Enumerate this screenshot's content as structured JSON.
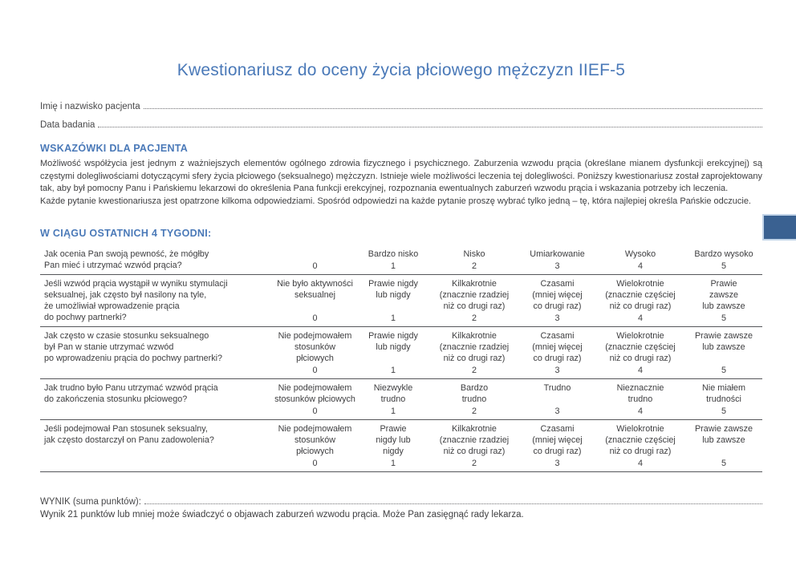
{
  "title": "Kwestionariusz do oceny życia płciowego mężczyzn IIEF-5",
  "patient_fields": [
    {
      "label": "Imię i nazwisko pacjenta"
    },
    {
      "label": "Data badania"
    }
  ],
  "instructions": {
    "heading": "WSKAZÓWKI DLA PACJENTA",
    "paragraphs": [
      "Możliwość współżycia jest jednym z ważniejszych elementów ogólnego zdrowia fizycznego i psychicznego. Zaburzenia wzwodu prącia (określane mianem dysfunkcji erekcyjnej) są częstymi dolegliwościami dotyczącymi sfery życia płciowego (seksualnego) mężczyzn. Istnieje wiele możliwości leczenia tej dolegliwości. Poniższy kwestionariusz został zaprojektowany tak, aby był pomocny Panu i Pańskiemu lekarzowi do określenia Pana funkcji erekcyjnej, rozpoznania ewentualnych zaburzeń wzwodu prącia i wskazania potrzeby ich leczenia.",
      "Każde pytanie kwestionariusza jest opatrzone kilkoma odpowiedziami. Spośród odpowiedzi na każde pytanie proszę wybrać tylko jedną – tę, która najlepiej określa Pańskie odczucie."
    ]
  },
  "questionnaire": {
    "heading": "W CIĄGU OSTATNICH 4 TYGODNI:",
    "questions": [
      {
        "text": "Jak ocenia Pan swoją pewność, że mógłby\nPan mieć i utrzymać wzwód prącia?",
        "options": [
          {
            "label": "",
            "score": "0"
          },
          {
            "label": "Bardzo nisko",
            "score": "1"
          },
          {
            "label": "Nisko",
            "score": "2"
          },
          {
            "label": "Umiarkowanie",
            "score": "3"
          },
          {
            "label": "Wysoko",
            "score": "4"
          },
          {
            "label": "Bardzo wysoko",
            "score": "5"
          }
        ]
      },
      {
        "text": "Jeśli wzwód prącia wystąpił w wyniku stymulacji\nseksualnej, jak często był nasilony na tyle,\nże umożliwiał wprowadzenie prącia\ndo pochwy partnerki?",
        "options": [
          {
            "label": "Nie było aktywności\nseksualnej",
            "score": "0"
          },
          {
            "label": "Prawie nigdy\nlub nigdy",
            "score": "1"
          },
          {
            "label": "Kilkakrotnie\n(znacznie rzadziej\nniż co drugi raz)",
            "score": "2"
          },
          {
            "label": "Czasami\n(mniej więcej\nco drugi raz)",
            "score": "3"
          },
          {
            "label": "Wielokrotnie\n(znacznie częściej\nniż co drugi raz)",
            "score": "4"
          },
          {
            "label": "Prawie\nzawsze\nlub zawsze",
            "score": "5"
          }
        ]
      },
      {
        "text": "Jak często w czasie stosunku seksualnego\nbył Pan w stanie utrzymać wzwód\npo wprowadzeniu prącia do pochwy partnerki?",
        "options": [
          {
            "label": "Nie podejmowałem\nstosunków\npłciowych",
            "score": "0"
          },
          {
            "label": "Prawie nigdy\nlub nigdy",
            "score": "1"
          },
          {
            "label": "Kilkakrotnie\n(znacznie rzadziej\nniż co drugi raz)",
            "score": "2"
          },
          {
            "label": "Czasami\n(mniej więcej\nco drugi raz)",
            "score": "3"
          },
          {
            "label": "Wielokrotnie\n(znacznie częściej\nniż co drugi raz)",
            "score": "4"
          },
          {
            "label": "Prawie zawsze\nlub zawsze",
            "score": "5"
          }
        ]
      },
      {
        "text": "Jak trudno było Panu utrzymać wzwód prącia\ndo zakończenia stosunku płciowego?",
        "options": [
          {
            "label": "Nie podejmowałem\nstosunków płciowych",
            "score": "0"
          },
          {
            "label": "Niezwykle\ntrudno",
            "score": "1"
          },
          {
            "label": "Bardzo\ntrudno",
            "score": "2"
          },
          {
            "label": "Trudno",
            "score": "3"
          },
          {
            "label": "Nieznacznie\ntrudno",
            "score": "4"
          },
          {
            "label": "Nie miałem\ntrudności",
            "score": "5"
          }
        ]
      },
      {
        "text": "Jeśli podejmował Pan stosunek seksualny,\njak często dostarczył on Panu zadowolenia?",
        "options": [
          {
            "label": "Nie podejmowałem\nstosunków\npłciowych",
            "score": "0"
          },
          {
            "label": "Prawie\nnigdy lub\nnigdy",
            "score": "1"
          },
          {
            "label": "Kilkakrotnie\n(znacznie rzadziej\nniż co drugi raz)",
            "score": "2"
          },
          {
            "label": "Czasami\n(mniej więcej\nco drugi raz)",
            "score": "3"
          },
          {
            "label": "Wielokrotnie\n(znacznie częściej\nniż co drugi raz)",
            "score": "4"
          },
          {
            "label": "Prawie zawsze\nlub zawsze",
            "score": "5"
          }
        ]
      }
    ]
  },
  "result": {
    "label": "WYNIK (suma punktów):",
    "note": "Wynik 21 punktów lub mniej może świadczyć o objawach zaburzeń wzwodu prącia. Może Pan zasięgnąć rady lekarza."
  },
  "colors": {
    "accent": "#4A79B8",
    "text": "#3E3E40",
    "rule": "#55565A",
    "tab_fill": "#3A6191",
    "tab_border": "#C2D4E8"
  }
}
